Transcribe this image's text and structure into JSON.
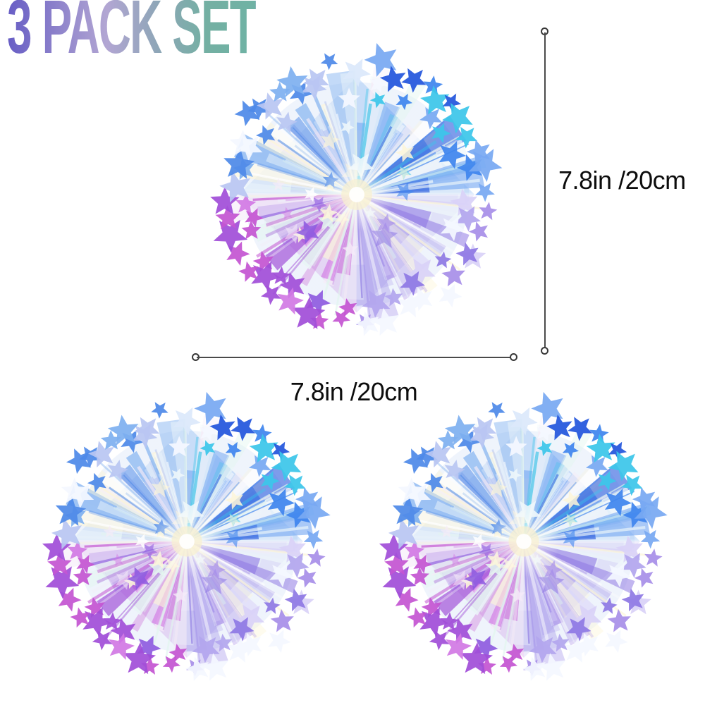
{
  "title": "3 PACK SET",
  "colors": {
    "background": "#ffffff",
    "title_gradient": [
      "#675dc5",
      "#8d82cb",
      "#b2a6d3",
      "#8fa6b8",
      "#74b0a3",
      "#6fb2a4"
    ],
    "measure_line": "#4a4a4a",
    "label_text": "#0d0d0d",
    "pom_palette": {
      "blues": [
        "#2456dd",
        "#3f85ee",
        "#3cc6e9",
        "#79a9f2"
      ],
      "light_blues": [
        "#4f8ae8",
        "#7fb0f0",
        "#b9c6f2",
        "#dce8fb"
      ],
      "purples": [
        "#a14fd8",
        "#c455d2",
        "#8f5ce0",
        "#d27ae4"
      ],
      "lavenders": [
        "#8f7ae4",
        "#b3a6ee",
        "#d9d2f8",
        "#a88fe8"
      ],
      "pearl": [
        "#ffffff",
        "#fdf6d8",
        "#eef7fb",
        "#f6ecf8",
        "#e2f6ef"
      ],
      "center_glow": "#f8efcf"
    }
  },
  "measurements": {
    "height_label": "7.8in /20cm",
    "width_label": "7.8in /20cm"
  },
  "products": [
    {
      "name": "Iridescent star pom-pom"
    },
    {
      "name": "Iridescent star pom-pom"
    },
    {
      "name": "Iridescent star pom-pom"
    }
  ]
}
